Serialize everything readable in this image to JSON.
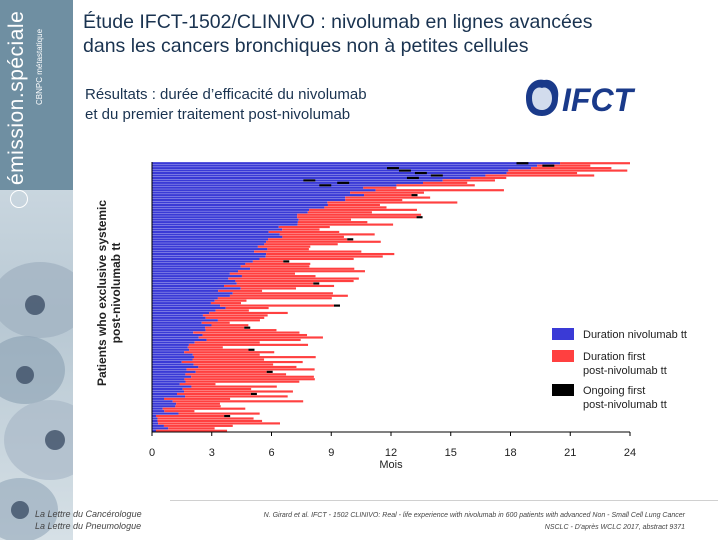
{
  "sidebar": {
    "brand": "émission.spéciale",
    "subtitle": "CBNPC métastatique"
  },
  "header": {
    "title_line1": "Étude IFCT-1502/CLINIVO : nivolumab en lignes avancées",
    "title_line2": "dans les cancers bronchiques non à petites cellules",
    "subtitle_line1": "Résultats : durée d’efficacité du nivolumab",
    "subtitle_line2": "et du premier traitement post-nivolumab",
    "logo_text": "IFCT"
  },
  "colors": {
    "nivolumab": "#3a3ad6",
    "post": "#ff4040",
    "ongoing": "#000000",
    "title": "#1a3350"
  },
  "chart_data": {
    "type": "swimmer",
    "ylabel_line1": "Patients who exclusive systemic",
    "ylabel_line2": "post-nivolumab tt",
    "xlabel": "Mois",
    "xlim": [
      0,
      24
    ],
    "xticks": [
      "0",
      "3",
      "6",
      "9",
      "12",
      "15",
      "18",
      "21",
      "24"
    ],
    "n_patients": 110,
    "legend": [
      {
        "label_line1": "Duration nivolumab tt",
        "label_line2": "",
        "color_key": "nivolumab"
      },
      {
        "label_line1": "Duration first",
        "label_line2": "post-nivolumab tt",
        "color_key": "post"
      },
      {
        "label_line1": "Ongoing first",
        "label_line2": "post-nivolumab tt",
        "color_key": "ongoing"
      }
    ],
    "nivolumab_duration_profile": {
      "months_at_patient_rank": [
        [
          0,
          20.5
        ],
        [
          5,
          17.0
        ],
        [
          10,
          11.0
        ],
        [
          20,
          8.0
        ],
        [
          30,
          6.0
        ],
        [
          45,
          4.5
        ],
        [
          60,
          3.2
        ],
        [
          80,
          2.0
        ],
        [
          95,
          1.2
        ],
        [
          110,
          0.3
        ]
      ]
    },
    "post_duration_profile": {
      "months_range": [
        0.3,
        8.0
      ],
      "typical_months": 4.0
    },
    "ongoing_markers_months": [
      18.3,
      19.6,
      11.8,
      12.4,
      13.2,
      14.0,
      12.8,
      7.6,
      9.3,
      8.4
    ]
  },
  "footer": {
    "left_line1": "La Lettre du Cancérologue",
    "left_line2": "La Lettre du Pneumologue",
    "ref_line1": "N. Girard et al. IFCT - 1502 CLINIVO: Real - life experience with nivolumab in 600 patients with advanced Non - Small Cell Lung Cancer",
    "ref_line2": "NSCLC - D'après WCLC 2017, abstract 9371"
  }
}
